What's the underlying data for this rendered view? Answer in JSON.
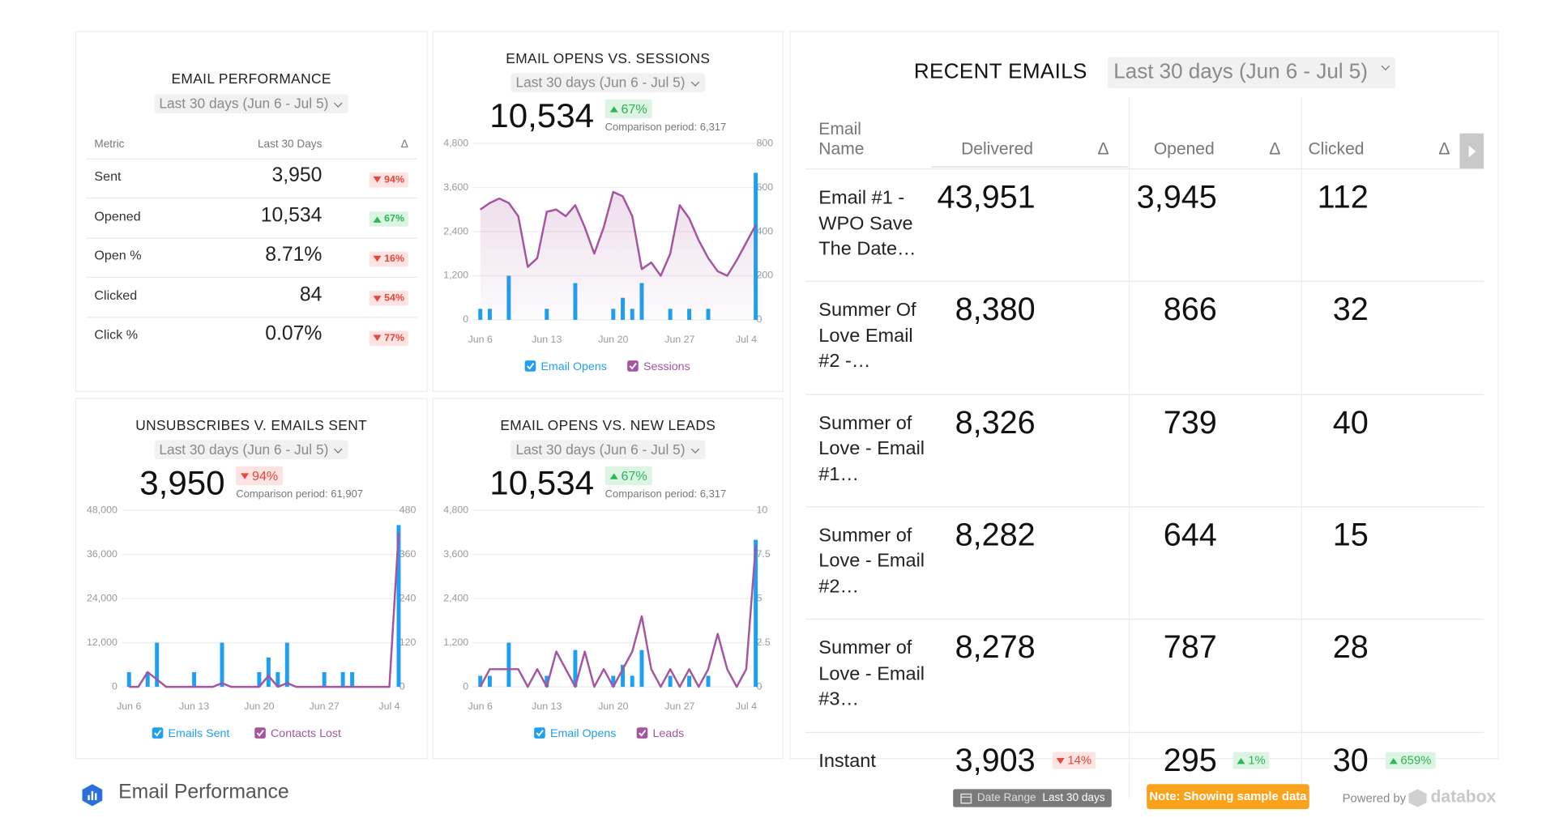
{
  "email_performance": {
    "title": "EMAIL PERFORMANCE",
    "date_range": "Last 30 days (Jun 6 - Jul 5)",
    "columns": [
      "Metric",
      "Last 30 Days",
      "Δ"
    ],
    "rows": [
      {
        "metric": "Sent",
        "value": "3,950",
        "delta": "94%",
        "trend": "down"
      },
      {
        "metric": "Opened",
        "value": "10,534",
        "delta": "67%",
        "trend": "up"
      },
      {
        "metric": "Open %",
        "value": "8.71%",
        "delta": "16%",
        "trend": "down"
      },
      {
        "metric": "Clicked",
        "value": "84",
        "delta": "54%",
        "trend": "down"
      },
      {
        "metric": "Click %",
        "value": "0.07%",
        "delta": "77%",
        "trend": "down"
      }
    ]
  },
  "chart_data": [
    {
      "type": "combo",
      "title": "EMAIL OPENS VS. SESSIONS",
      "date_range": "Last 30 days (Jun 6 - Jul 5)",
      "kpi": "10,534",
      "kpi_delta": "67%",
      "kpi_trend": "up",
      "comparison": "Comparison period: 6,317",
      "categories": [
        "Jun 6",
        null,
        null,
        null,
        null,
        null,
        null,
        "Jun 13",
        null,
        null,
        null,
        null,
        null,
        null,
        "Jun 20",
        null,
        null,
        null,
        null,
        null,
        null,
        "Jun 27",
        null,
        null,
        null,
        null,
        null,
        null,
        "Jul 4",
        null
      ],
      "series": [
        {
          "name": "Email Opens",
          "type": "bar",
          "color": "#1e9ff2",
          "values": [
            300,
            300,
            0,
            1200,
            0,
            0,
            0,
            300,
            0,
            0,
            1000,
            0,
            0,
            0,
            300,
            600,
            300,
            1000,
            0,
            0,
            300,
            0,
            300,
            0,
            300,
            0,
            0,
            0,
            0,
            4000
          ]
        },
        {
          "name": "Sessions",
          "type": "line",
          "axis": "y2",
          "area": true,
          "color": "#a5559f",
          "values": [
            500,
            530,
            550,
            530,
            470,
            240,
            280,
            490,
            500,
            470,
            520,
            420,
            300,
            420,
            580,
            560,
            470,
            230,
            260,
            200,
            300,
            520,
            460,
            360,
            280,
            220,
            200,
            270,
            350,
            430
          ]
        }
      ],
      "ylim": [
        0,
        4800
      ],
      "yticks": [
        0,
        {
          "value": 1200,
          "label": "1,200"
        },
        {
          "value": 2400,
          "label": "2,400"
        },
        {
          "value": 3600,
          "label": "3,600"
        },
        {
          "value": 4800,
          "label": "4,800"
        }
      ],
      "y2lim": [
        0,
        800
      ],
      "y2ticks": [
        0,
        200,
        400,
        600,
        800
      ],
      "grid": true
    },
    {
      "type": "combo",
      "title": "UNSUBSCRIBES V. EMAILS SENT",
      "date_range": "Last 30 days (Jun 6 - Jul 5)",
      "kpi": "3,950",
      "kpi_delta": "94%",
      "kpi_trend": "down",
      "comparison": "Comparison period: 61,907",
      "categories": [
        "Jun 6",
        null,
        null,
        null,
        null,
        null,
        null,
        "Jun 13",
        null,
        null,
        null,
        null,
        null,
        null,
        "Jun 20",
        null,
        null,
        null,
        null,
        null,
        null,
        "Jun 27",
        null,
        null,
        null,
        null,
        null,
        null,
        "Jul 4",
        null
      ],
      "series": [
        {
          "name": "Emails Sent",
          "type": "bar",
          "color": "#1e9ff2",
          "values": [
            4000,
            0,
            4000,
            12000,
            0,
            0,
            0,
            4000,
            0,
            0,
            12000,
            0,
            0,
            0,
            4000,
            8000,
            4000,
            12000,
            0,
            0,
            0,
            4000,
            0,
            4000,
            4000,
            0,
            0,
            0,
            0,
            44000
          ]
        },
        {
          "name": "Contacts Lost",
          "type": "line",
          "axis": "y2",
          "color": "#a5559f",
          "values": [
            0,
            0,
            40,
            20,
            0,
            0,
            0,
            0,
            0,
            0,
            10,
            0,
            0,
            0,
            0,
            30,
            0,
            10,
            0,
            0,
            0,
            0,
            0,
            0,
            0,
            0,
            0,
            0,
            0,
            420
          ]
        }
      ],
      "ylim": [
        0,
        48000
      ],
      "yticks": [
        0,
        {
          "value": 12000,
          "label": "12,000"
        },
        {
          "value": 24000,
          "label": "24,000"
        },
        {
          "value": 36000,
          "label": "36,000"
        },
        {
          "value": 48000,
          "label": "48,000"
        }
      ],
      "y2lim": [
        0,
        480
      ],
      "y2ticks": [
        0,
        120,
        240,
        360,
        480
      ],
      "grid": true
    },
    {
      "type": "combo",
      "title": "EMAIL OPENS VS. NEW LEADS",
      "date_range": "Last 30 days (Jun 6 - Jul 5)",
      "kpi": "10,534",
      "kpi_delta": "67%",
      "kpi_trend": "up",
      "comparison": "Comparison period: 6,317",
      "categories": [
        "Jun 6",
        null,
        null,
        null,
        null,
        null,
        null,
        "Jun 13",
        null,
        null,
        null,
        null,
        null,
        null,
        "Jun 20",
        null,
        null,
        null,
        null,
        null,
        null,
        "Jun 27",
        null,
        null,
        null,
        null,
        null,
        null,
        "Jul 4",
        null
      ],
      "series": [
        {
          "name": "Email Opens",
          "type": "bar",
          "color": "#1e9ff2",
          "values": [
            300,
            300,
            0,
            1200,
            0,
            0,
            0,
            300,
            0,
            0,
            1000,
            0,
            0,
            0,
            300,
            600,
            300,
            1000,
            0,
            0,
            300,
            0,
            300,
            0,
            300,
            0,
            0,
            0,
            0,
            4000
          ]
        },
        {
          "name": "Leads",
          "type": "line",
          "axis": "y2",
          "color": "#a5559f",
          "values": [
            0,
            1,
            1,
            1,
            1,
            0,
            1,
            0,
            2,
            1,
            0,
            2,
            0,
            1,
            0,
            1,
            2,
            4,
            1,
            0,
            1,
            0,
            1,
            0,
            1,
            3,
            1,
            0,
            1,
            8
          ]
        }
      ],
      "ylim": [
        0,
        4800
      ],
      "yticks": [
        0,
        {
          "value": 1200,
          "label": "1,200"
        },
        {
          "value": 2400,
          "label": "2,400"
        },
        {
          "value": 3600,
          "label": "3,600"
        },
        {
          "value": 4800,
          "label": "4,800"
        }
      ],
      "y2lim": [
        0,
        10
      ],
      "y2ticks": [
        0,
        2.5,
        5,
        7.5,
        10
      ],
      "grid": true
    }
  ],
  "recent_emails": {
    "title": "RECENT EMAILS",
    "date_range": "Last 30 days (Jun 6 - Jul 5)",
    "columns": [
      "Email Name",
      "Delivered",
      "Δ",
      "Opened",
      "Δ",
      "Clicked",
      "Δ"
    ],
    "rows": [
      {
        "name": "Email #1 - WPO Save The Date…",
        "delivered": "43,951",
        "opened": "3,945",
        "clicked": "112"
      },
      {
        "name": "Summer Of Love Email #2 -…",
        "delivered": "8,380",
        "opened": "866",
        "clicked": "32"
      },
      {
        "name": "Summer of Love - Email #1…",
        "delivered": "8,326",
        "opened": "739",
        "clicked": "40"
      },
      {
        "name": "Summer of Love - Email #2…",
        "delivered": "8,282",
        "opened": "644",
        "clicked": "15"
      },
      {
        "name": "Summer of Love - Email #3…",
        "delivered": "8,278",
        "opened": "787",
        "clicked": "28"
      },
      {
        "name": "Instant",
        "delivered": "3,903",
        "opened": "295",
        "clicked": "30",
        "deltas": [
          {
            "label": "14%",
            "trend": "down"
          },
          {
            "label": "1%",
            "trend": "up"
          },
          {
            "label": "659%",
            "trend": "up"
          }
        ]
      }
    ]
  },
  "footer": {
    "title": "Email Performance",
    "date_range_label": "Date Range",
    "date_range_value": "Last 30 days",
    "note": "Note: Showing sample data",
    "powered_by": "Powered by",
    "brand": "databox"
  }
}
